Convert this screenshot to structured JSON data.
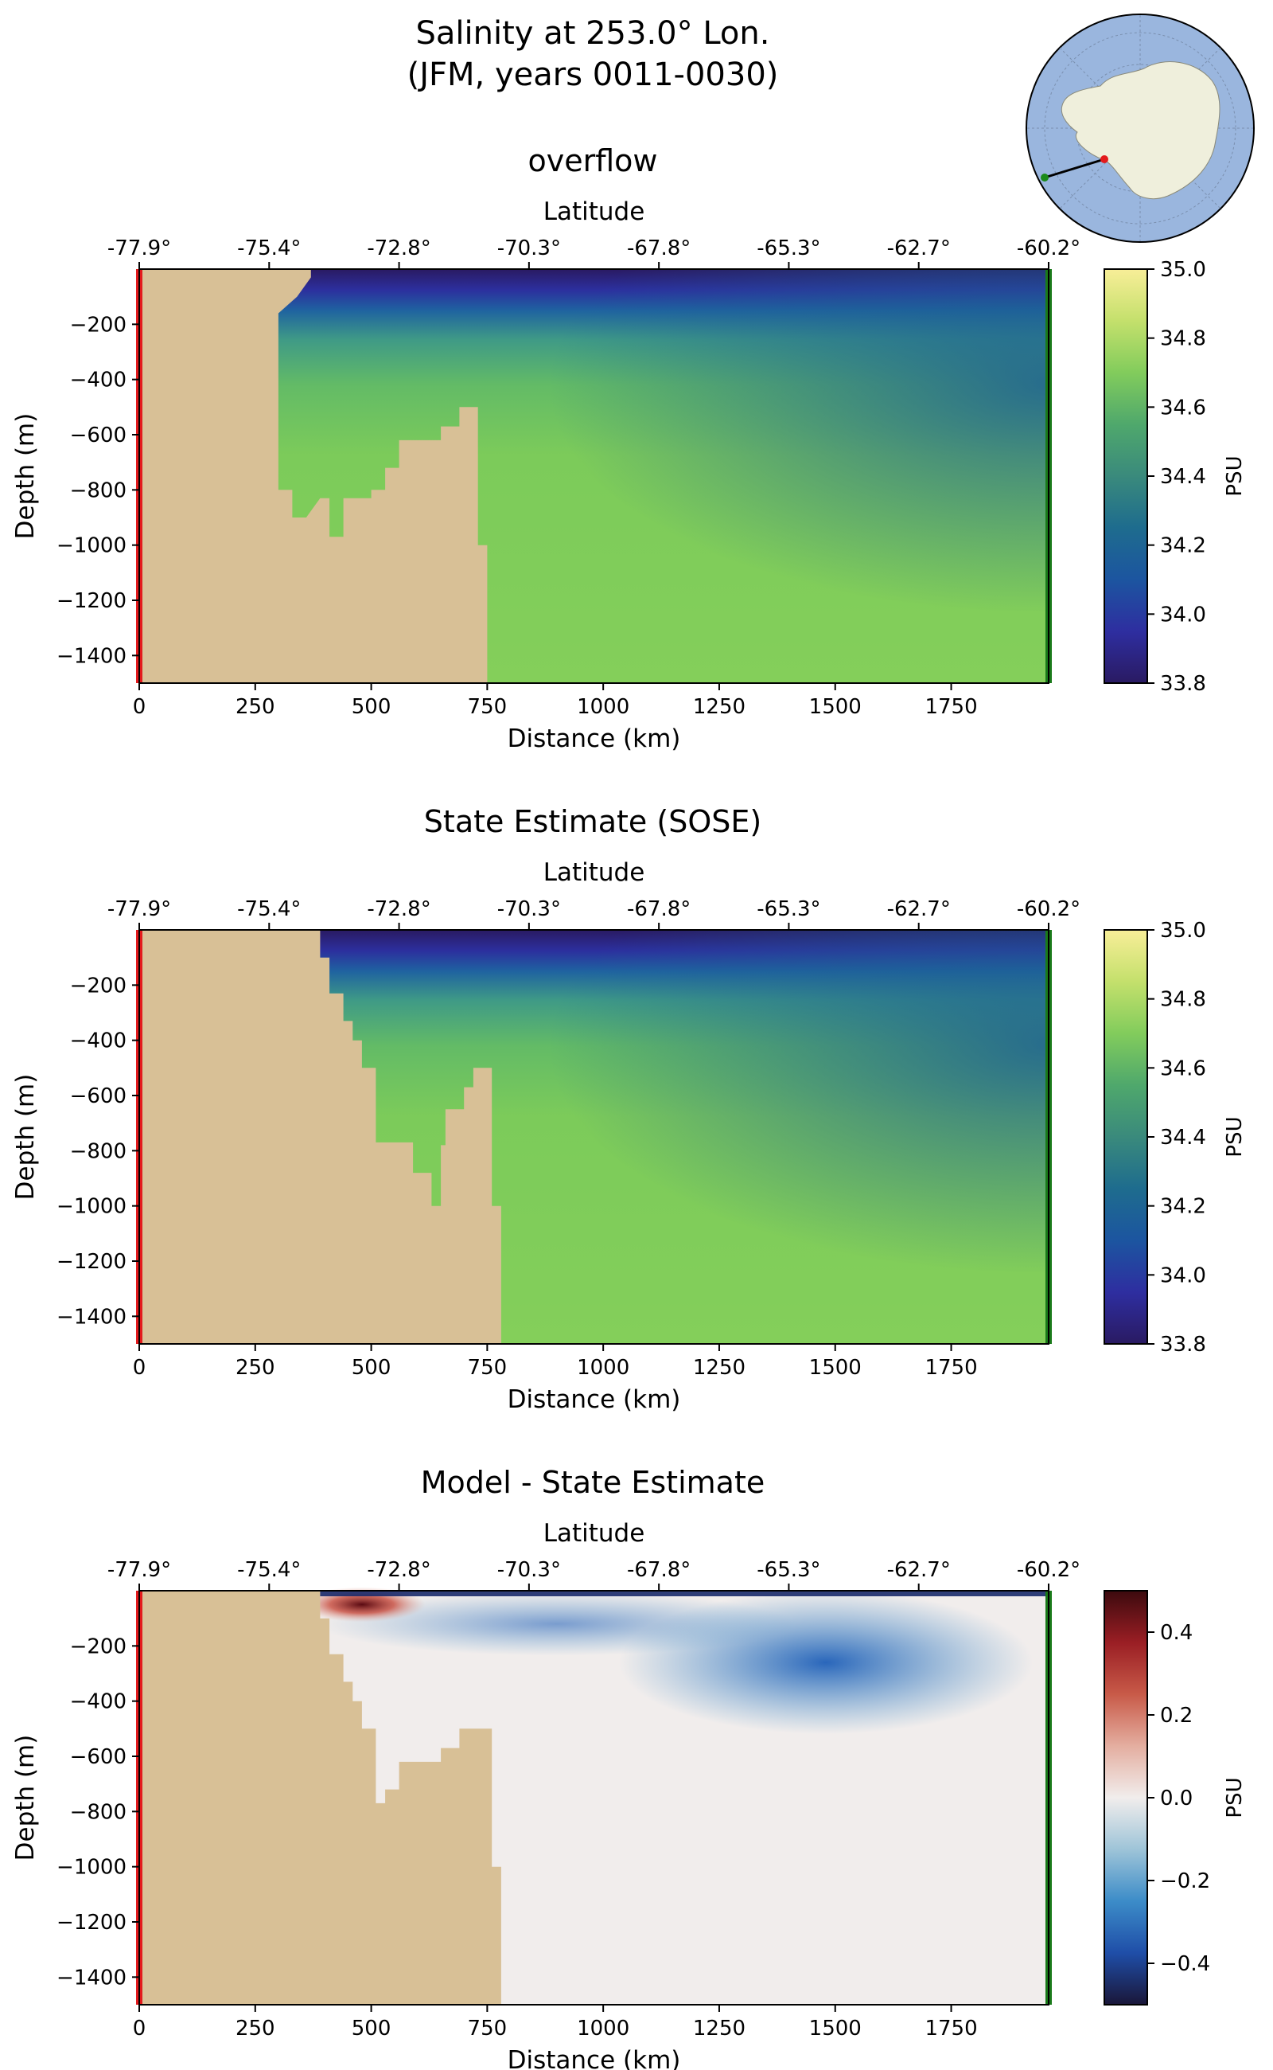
{
  "figure": {
    "title_line1": "Salinity at 253.0° Lon.",
    "title_line2": "(JFM, years 0011-0030)"
  },
  "inset_map": {
    "description_icon": "antarctica-locator-map",
    "colors": {
      "ocean": "#9ab6de",
      "land": "#efefdc",
      "section_line": "#000000",
      "start_point": "#e31a1c",
      "end_point": "#1a8a1a"
    }
  },
  "colors": {
    "land_mask": "#d8c096",
    "start_marker": "#e31a1c",
    "end_marker": "#1a7a1a"
  },
  "chart_data": [
    {
      "type": "heatmap",
      "title": "overflow",
      "xlabel": "Distance (km)",
      "ylabel": "Depth (m)",
      "top_axis_label": "Latitude",
      "top_ticks": [
        "-77.9°",
        "-75.4°",
        "-72.8°",
        "-70.3°",
        "-67.8°",
        "-65.3°",
        "-62.7°",
        "-60.2°"
      ],
      "x_ticks": [
        0,
        250,
        500,
        750,
        1000,
        1250,
        1500,
        1750
      ],
      "y_ticks": [
        -200,
        -400,
        -600,
        -800,
        -1000,
        -1200,
        -1400
      ],
      "xlim": [
        0,
        1960
      ],
      "ylim": [
        -1500,
        0
      ],
      "colorbar": {
        "label": "PSU",
        "min": 33.8,
        "max": 35.0,
        "ticks": [
          "35.0",
          "34.8",
          "34.6",
          "34.4",
          "34.2",
          "34.0",
          "33.8"
        ],
        "colormap": "haline"
      },
      "bathymetry_km_m": [
        [
          0,
          0
        ],
        [
          370,
          0
        ],
        [
          370,
          -30
        ],
        [
          340,
          -100
        ],
        [
          300,
          -160
        ],
        [
          300,
          -800
        ],
        [
          330,
          -800
        ],
        [
          330,
          -900
        ],
        [
          360,
          -900
        ],
        [
          390,
          -830
        ],
        [
          410,
          -830
        ],
        [
          410,
          -970
        ],
        [
          440,
          -970
        ],
        [
          440,
          -830
        ],
        [
          500,
          -830
        ],
        [
          500,
          -800
        ],
        [
          530,
          -800
        ],
        [
          530,
          -720
        ],
        [
          560,
          -720
        ],
        [
          560,
          -620
        ],
        [
          650,
          -620
        ],
        [
          650,
          -570
        ],
        [
          690,
          -570
        ],
        [
          690,
          -500
        ],
        [
          730,
          -500
        ],
        [
          730,
          -1000
        ],
        [
          750,
          -1000
        ],
        [
          750,
          -1500
        ],
        [
          0,
          -1500
        ]
      ]
    },
    {
      "type": "heatmap",
      "title": "State Estimate (SOSE)",
      "xlabel": "Distance (km)",
      "ylabel": "Depth (m)",
      "top_axis_label": "Latitude",
      "top_ticks": [
        "-77.9°",
        "-75.4°",
        "-72.8°",
        "-70.3°",
        "-67.8°",
        "-65.3°",
        "-62.7°",
        "-60.2°"
      ],
      "x_ticks": [
        0,
        250,
        500,
        750,
        1000,
        1250,
        1500,
        1750
      ],
      "y_ticks": [
        -200,
        -400,
        -600,
        -800,
        -1000,
        -1200,
        -1400
      ],
      "xlim": [
        0,
        1960
      ],
      "ylim": [
        -1500,
        0
      ],
      "colorbar": {
        "label": "PSU",
        "min": 33.8,
        "max": 35.0,
        "ticks": [
          "35.0",
          "34.8",
          "34.6",
          "34.4",
          "34.2",
          "34.0",
          "33.8"
        ],
        "colormap": "haline"
      },
      "bathymetry_km_m": [
        [
          0,
          0
        ],
        [
          390,
          0
        ],
        [
          390,
          -100
        ],
        [
          410,
          -100
        ],
        [
          410,
          -230
        ],
        [
          440,
          -230
        ],
        [
          440,
          -330
        ],
        [
          460,
          -330
        ],
        [
          460,
          -400
        ],
        [
          480,
          -400
        ],
        [
          480,
          -500
        ],
        [
          510,
          -500
        ],
        [
          510,
          -770
        ],
        [
          590,
          -770
        ],
        [
          590,
          -880
        ],
        [
          630,
          -880
        ],
        [
          630,
          -1000
        ],
        [
          650,
          -1000
        ],
        [
          650,
          -780
        ],
        [
          660,
          -780
        ],
        [
          660,
          -650
        ],
        [
          700,
          -650
        ],
        [
          700,
          -570
        ],
        [
          720,
          -570
        ],
        [
          720,
          -500
        ],
        [
          760,
          -500
        ],
        [
          760,
          -1000
        ],
        [
          780,
          -1000
        ],
        [
          780,
          -1500
        ],
        [
          0,
          -1500
        ]
      ]
    },
    {
      "type": "heatmap",
      "title": "Model - State Estimate",
      "xlabel": "Distance (km)",
      "ylabel": "Depth (m)",
      "top_axis_label": "Latitude",
      "top_ticks": [
        "-77.9°",
        "-75.4°",
        "-72.8°",
        "-70.3°",
        "-67.8°",
        "-65.3°",
        "-62.7°",
        "-60.2°"
      ],
      "x_ticks": [
        0,
        250,
        500,
        750,
        1000,
        1250,
        1500,
        1750
      ],
      "y_ticks": [
        -200,
        -400,
        -600,
        -800,
        -1000,
        -1200,
        -1400
      ],
      "xlim": [
        0,
        1960
      ],
      "ylim": [
        -1500,
        0
      ],
      "colorbar": {
        "label": "PSU",
        "min": -0.5,
        "max": 0.5,
        "ticks": [
          "0.4",
          "0.2",
          "0.0",
          "−0.2",
          "−0.4"
        ],
        "tick_values": [
          0.4,
          0.2,
          0.0,
          -0.2,
          -0.4
        ],
        "colormap": "balance"
      },
      "bathymetry_km_m": [
        [
          0,
          0
        ],
        [
          390,
          0
        ],
        [
          390,
          -100
        ],
        [
          410,
          -100
        ],
        [
          410,
          -230
        ],
        [
          440,
          -230
        ],
        [
          440,
          -330
        ],
        [
          460,
          -330
        ],
        [
          460,
          -400
        ],
        [
          480,
          -400
        ],
        [
          480,
          -500
        ],
        [
          510,
          -500
        ],
        [
          510,
          -770
        ],
        [
          530,
          -770
        ],
        [
          530,
          -720
        ],
        [
          560,
          -720
        ],
        [
          560,
          -620
        ],
        [
          650,
          -620
        ],
        [
          650,
          -570
        ],
        [
          690,
          -570
        ],
        [
          690,
          -500
        ],
        [
          760,
          -500
        ],
        [
          760,
          -1000
        ],
        [
          780,
          -1000
        ],
        [
          780,
          -1500
        ],
        [
          0,
          -1500
        ]
      ]
    }
  ]
}
